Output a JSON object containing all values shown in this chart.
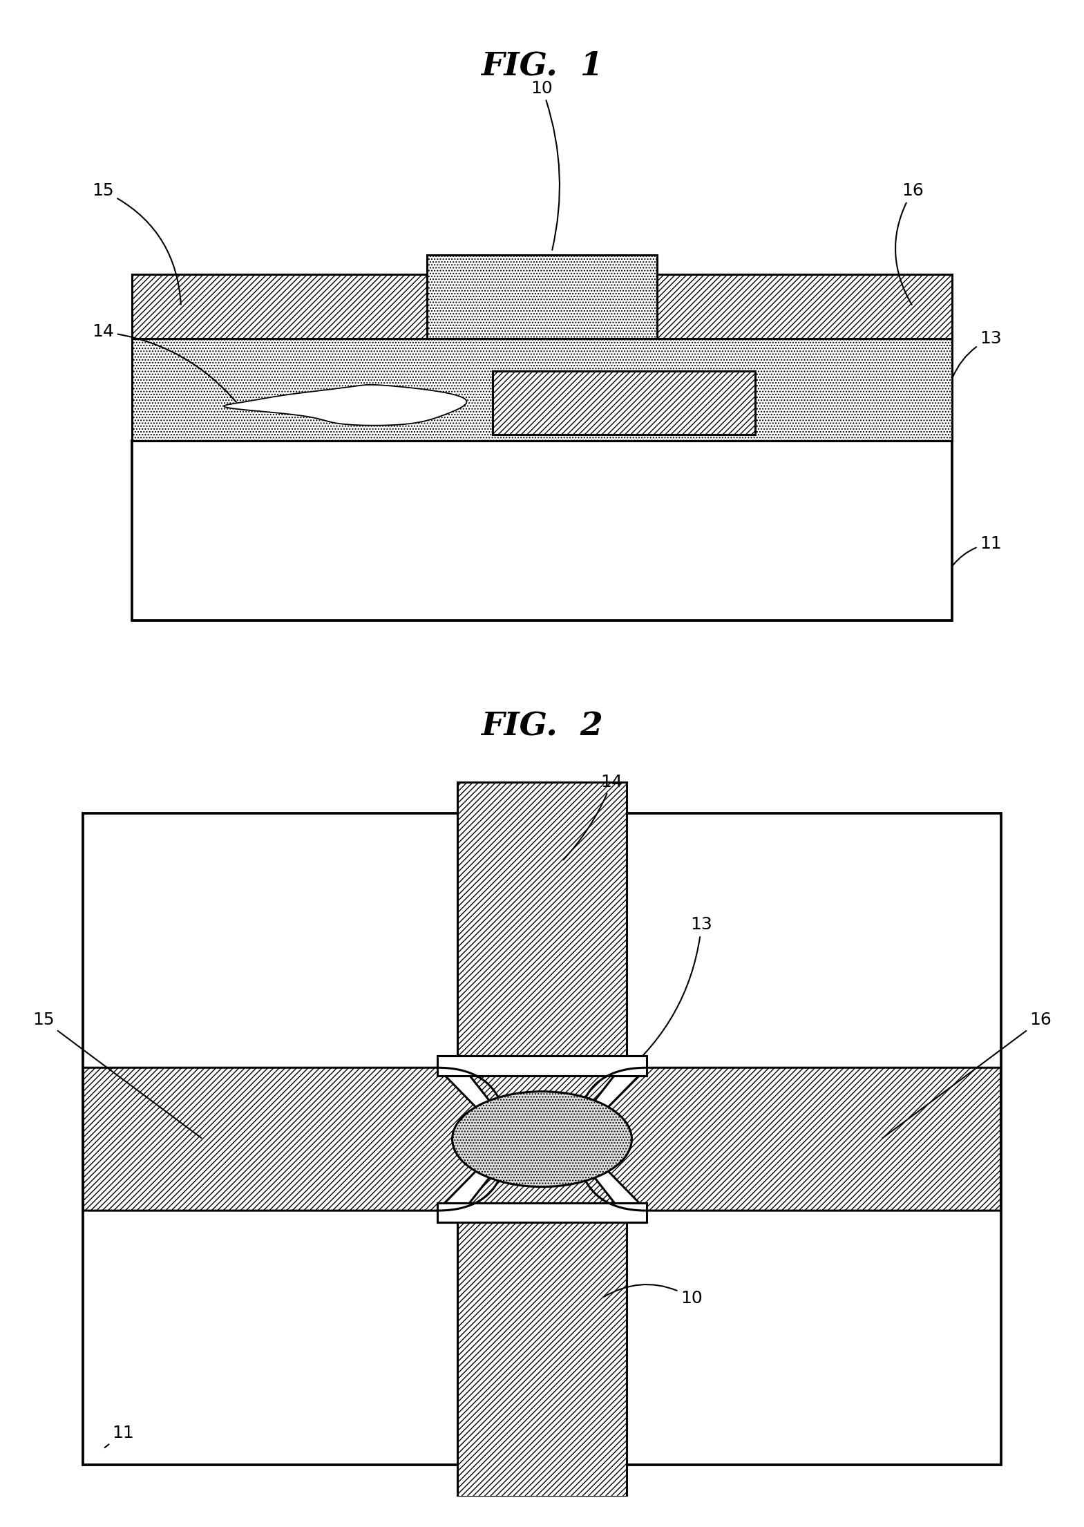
{
  "fig1_title": "FIG.  1",
  "fig2_title": "FIG.  2",
  "bg_color": "#ffffff",
  "hatch_diag": "////",
  "hatch_dot": "....",
  "label_fontsize": 18,
  "title_fontsize": 34,
  "lw": 2.2
}
